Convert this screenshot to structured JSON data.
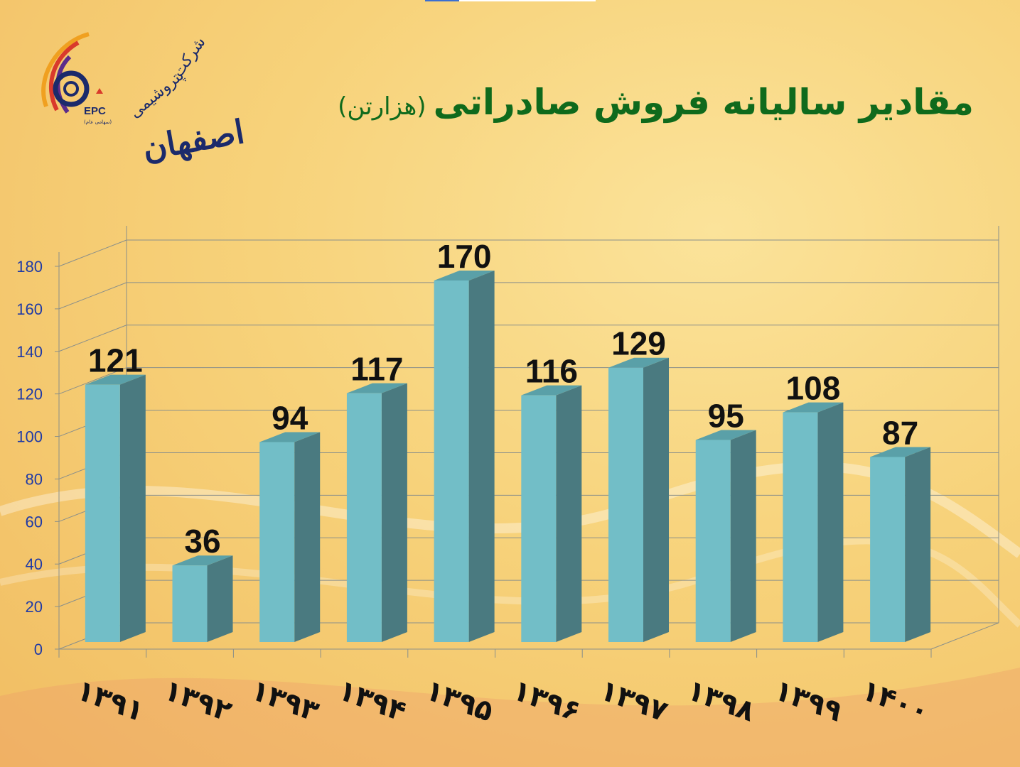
{
  "header": {
    "title": "مقادیر سالیانه فروش صادراتی",
    "unit": "(هزارتن)"
  },
  "logo": {
    "company": "شرکت",
    "subtitle": "پتروشیمی",
    "city": "اصفهان",
    "abbr": "EPC",
    "tagline": "(سهامی عام)"
  },
  "colors": {
    "title": "#0f6a1c",
    "bar_front": "#72bec7",
    "bar_side": "#4a7a80",
    "bar_top": "#5aa0a8",
    "axis_labels": "#1f3aa6",
    "grid": "#8a8f8a"
  },
  "chart_data": {
    "type": "bar",
    "title": "مقادیر سالیانه فروش صادراتی (هزارتن)",
    "categories": [
      "۱۳۹۱",
      "۱۳۹۲",
      "۱۳۹۳",
      "۱۳۹۴",
      "۱۳۹۵",
      "۱۳۹۶",
      "۱۳۹۷",
      "۱۳۹۸",
      "۱۳۹۹",
      "۱۴۰۰"
    ],
    "values": [
      121,
      36,
      94,
      117,
      170,
      116,
      129,
      95,
      108,
      87
    ],
    "ylim": [
      0,
      180
    ],
    "yticks": [
      0,
      20,
      40,
      60,
      80,
      100,
      120,
      140,
      160,
      180
    ],
    "grid": true,
    "style": "3d",
    "xlabel": "",
    "ylabel": ""
  }
}
